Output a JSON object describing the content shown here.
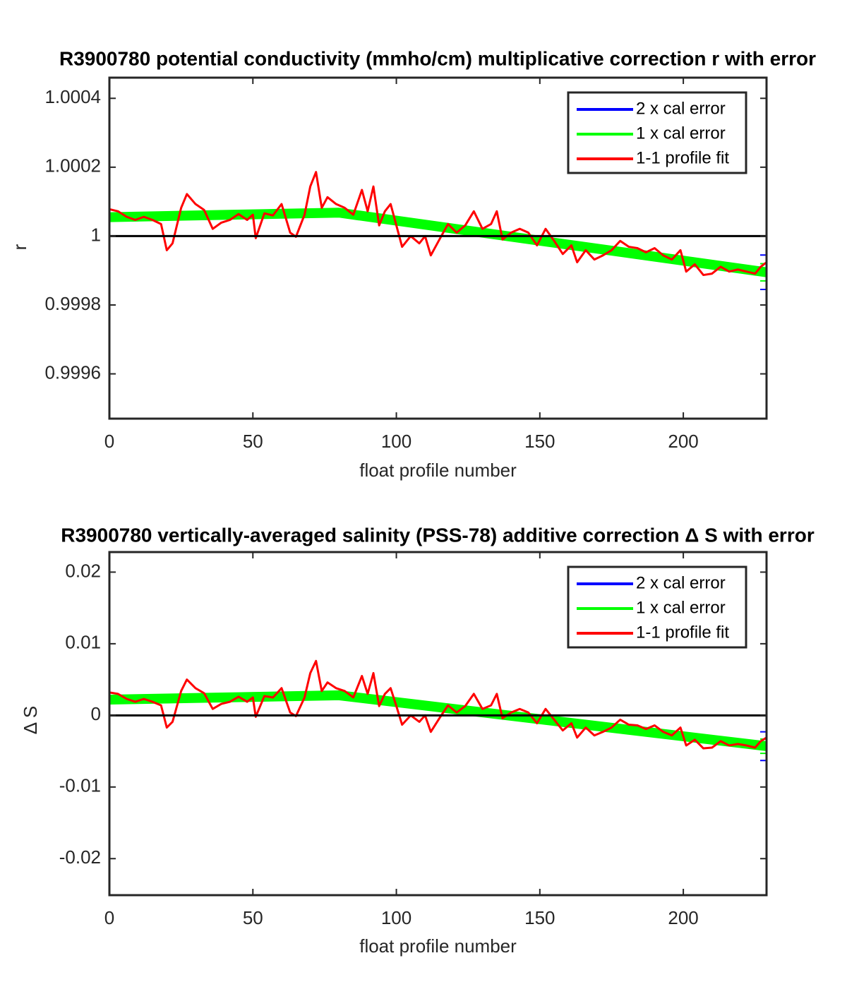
{
  "chart_data": [
    {
      "type": "line",
      "title": "R3900780 potential conductivity (mmho/cm) multiplicative correction r with error",
      "x_label": "float profile number",
      "y_label": "r",
      "xlim": [
        0,
        229
      ],
      "xticks": [
        0,
        50,
        100,
        150,
        200
      ],
      "ylim": [
        0.99947,
        1.00046
      ],
      "yticks": [
        0.9996,
        0.9998,
        1,
        1.0002,
        1.0004
      ],
      "reference_line": 1,
      "legend": "upper right",
      "series": [
        {
          "name": "2 x cal error",
          "color": "#0000ff",
          "x": [
            0,
            80,
            229
          ],
          "values": [
            1.000055,
            1.000068,
            0.999895
          ],
          "errors": [
            6e-06,
            6e-06,
            5e-05
          ]
        },
        {
          "name": "1 x cal error",
          "color": "#00ff00",
          "x": [
            0,
            80,
            229
          ],
          "values": [
            1.000055,
            1.000068,
            0.999895
          ],
          "errors": [
            3e-06,
            3e-06,
            2.5e-05
          ]
        },
        {
          "name": "1-1 profile fit",
          "color": "#ff0000",
          "x": [
            0,
            3,
            6,
            9,
            12,
            15,
            18,
            20,
            22,
            25,
            27,
            30,
            33,
            36,
            39,
            42,
            45,
            48,
            50,
            51,
            54,
            57,
            60,
            63,
            65,
            68,
            70,
            72,
            74,
            76,
            79,
            82,
            85,
            88,
            90,
            92,
            94,
            96,
            98,
            100,
            102,
            105,
            108,
            110,
            112,
            115,
            118,
            121,
            124,
            127,
            130,
            133,
            135,
            137,
            140,
            143,
            146,
            149,
            152,
            155,
            158,
            161,
            163,
            166,
            169,
            172,
            175,
            178,
            181,
            184,
            187,
            190,
            193,
            196,
            199,
            201,
            204,
            207,
            210,
            213,
            216,
            219,
            222,
            225,
            227,
            229
          ],
          "values": [
            1.000078,
            1.000072,
            1.000056,
            1.000047,
            1.000056,
            1.000047,
            1.000035,
            0.999959,
            0.999979,
            1.000082,
            1.000122,
            1.000093,
            1.000076,
            1.000021,
            1.000039,
            1.000047,
            1.000064,
            1.000047,
            1.000062,
            0.999994,
            1.000066,
            1.00006,
            1.000093,
            1.00001,
            0.999998,
            1.000062,
            1.000144,
            1.000186,
            1.000082,
            1.000113,
            1.000093,
            1.000082,
            1.000062,
            1.000134,
            1.000072,
            1.000144,
            1.000031,
            1.000072,
            1.000093,
            1.000031,
            0.999969,
            1,
            0.999979,
            1,
            0.999944,
            0.99999,
            1.000035,
            1.00001,
            1.000031,
            1.000072,
            1.000021,
            1.000035,
            1.000072,
            0.99999,
            1.00001,
            1.000021,
            1.00001,
            0.999973,
            1.000021,
            0.999986,
            0.999948,
            0.999973,
            0.999924,
            0.999959,
            0.999932,
            0.999944,
            0.999959,
            0.999986,
            0.999969,
            0.999965,
            0.999953,
            0.999965,
            0.999944,
            0.999932,
            0.999959,
            0.999897,
            0.999918,
            0.999887,
            0.999891,
            0.999911,
            0.999897,
            0.999903,
            0.999897,
            0.999891,
            0.999911,
            0.999924
          ]
        }
      ]
    },
    {
      "type": "line",
      "title": "R3900780 vertically-averaged salinity (PSS-78) additive correction Δ S with error",
      "x_label": "float profile number",
      "y_label": "Δ S",
      "xlim": [
        0,
        229
      ],
      "xticks": [
        0,
        50,
        100,
        150,
        200
      ],
      "ylim": [
        -0.0251,
        0.0228
      ],
      "yticks": [
        -0.02,
        -0.01,
        0,
        0.01,
        0.02
      ],
      "reference_line": 0,
      "legend": "upper right",
      "series": [
        {
          "name": "2 x cal error",
          "color": "#0000ff",
          "x": [
            0,
            80,
            229
          ],
          "values": [
            0.0022,
            0.0028,
            -0.0043
          ],
          "errors": [
            0.0002,
            0.0002,
            0.002
          ]
        },
        {
          "name": "1 x cal error",
          "color": "#00ff00",
          "x": [
            0,
            80,
            229
          ],
          "values": [
            0.0022,
            0.0028,
            -0.0043
          ],
          "errors": [
            0.0001,
            0.0001,
            0.001
          ]
        },
        {
          "name": "1-1 profile fit",
          "color": "#ff0000",
          "x": [
            0,
            3,
            6,
            9,
            12,
            15,
            18,
            20,
            22,
            25,
            27,
            30,
            33,
            36,
            39,
            42,
            45,
            48,
            50,
            51,
            54,
            57,
            60,
            63,
            65,
            68,
            70,
            72,
            74,
            76,
            79,
            82,
            85,
            88,
            90,
            92,
            94,
            96,
            98,
            100,
            102,
            105,
            108,
            110,
            112,
            115,
            118,
            121,
            124,
            127,
            130,
            133,
            135,
            137,
            140,
            143,
            146,
            149,
            152,
            155,
            158,
            161,
            163,
            166,
            169,
            172,
            175,
            178,
            181,
            184,
            187,
            190,
            193,
            196,
            199,
            201,
            204,
            207,
            210,
            213,
            216,
            219,
            222,
            225,
            227,
            229
          ],
          "values": [
            0.0032,
            0.003,
            0.0023,
            0.0019,
            0.0023,
            0.0019,
            0.0014,
            -0.0017,
            -0.0009,
            0.0034,
            0.005,
            0.0038,
            0.0031,
            0.0009,
            0.0016,
            0.0019,
            0.0026,
            0.0019,
            0.0025,
            -0.0002,
            0.0027,
            0.0025,
            0.0038,
            0.0004,
            -0.0001,
            0.0025,
            0.0059,
            0.0076,
            0.0034,
            0.0046,
            0.0038,
            0.0034,
            0.0025,
            0.0055,
            0.003,
            0.0059,
            0.0013,
            0.003,
            0.0038,
            0.0013,
            -0.0013,
            0,
            -0.0009,
            0,
            -0.0023,
            -0.0004,
            0.0014,
            0.0004,
            0.0013,
            0.003,
            0.0009,
            0.0014,
            0.003,
            -0.0004,
            0.0004,
            0.0009,
            0.0004,
            -0.0011,
            0.0009,
            -0.0006,
            -0.0021,
            -0.0011,
            -0.0031,
            -0.0017,
            -0.0028,
            -0.0023,
            -0.0017,
            -0.0006,
            -0.0013,
            -0.0014,
            -0.0019,
            -0.0014,
            -0.0023,
            -0.0028,
            -0.0017,
            -0.0042,
            -0.0034,
            -0.0046,
            -0.0045,
            -0.0036,
            -0.0042,
            -0.004,
            -0.0042,
            -0.0045,
            -0.0036,
            -0.0031
          ]
        }
      ]
    }
  ]
}
